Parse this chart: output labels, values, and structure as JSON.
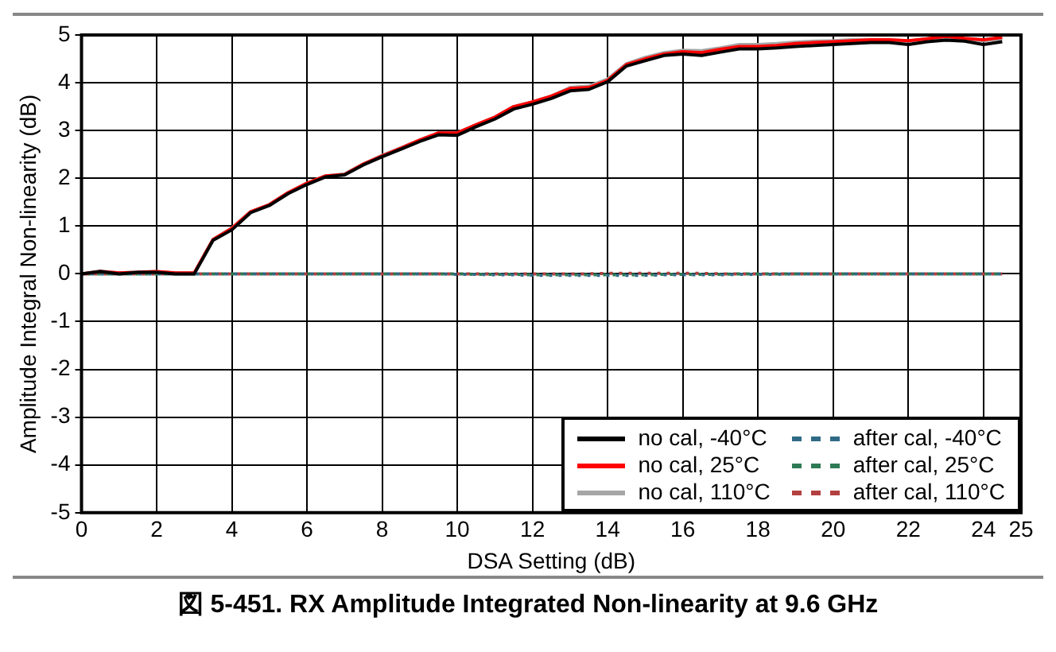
{
  "chart_data": {
    "type": "line",
    "title": "図 5-451. RX Amplitude Integrated Non-linearity at 9.6 GHz",
    "xlabel": "DSA Setting (dB)",
    "ylabel": "Amplitude Integral Non-linearity (dB)",
    "x": [
      0,
      0.5,
      1,
      1.5,
      2,
      2.5,
      3,
      3.5,
      4,
      4.5,
      5,
      5.5,
      6,
      6.5,
      7,
      7.5,
      8,
      8.5,
      9,
      9.5,
      10,
      10.5,
      11,
      11.5,
      12,
      12.5,
      13,
      13.5,
      14,
      14.5,
      15,
      15.5,
      16,
      16.5,
      17,
      17.5,
      18,
      18.5,
      19,
      19.5,
      20,
      20.5,
      21,
      21.5,
      22,
      22.5,
      23,
      23.5,
      24,
      24.5
    ],
    "series": [
      {
        "name": "no cal, -40°C",
        "color": "#000000",
        "line_style": "solid",
        "values": [
          0,
          0.05,
          0,
          0.03,
          0.03,
          0,
          0,
          0.7,
          0.92,
          1.28,
          1.43,
          1.68,
          1.87,
          2.03,
          2.07,
          2.28,
          2.45,
          2.61,
          2.77,
          2.91,
          2.9,
          3.08,
          3.24,
          3.45,
          3.55,
          3.67,
          3.83,
          3.86,
          4.02,
          4.35,
          4.46,
          4.57,
          4.6,
          4.57,
          4.64,
          4.71,
          4.71,
          4.73,
          4.76,
          4.78,
          4.8,
          4.82,
          4.84,
          4.84,
          4.8,
          4.86,
          4.89,
          4.87,
          4.8,
          4.86
        ]
      },
      {
        "name": "no cal, 25°C",
        "color": "#ff0000",
        "line_style": "solid",
        "values": [
          0,
          0.05,
          0.02,
          0.03,
          0.05,
          0.02,
          0.02,
          0.72,
          0.95,
          1.3,
          1.45,
          1.7,
          1.9,
          2.05,
          2.08,
          2.3,
          2.47,
          2.63,
          2.8,
          2.95,
          2.95,
          3.12,
          3.28,
          3.5,
          3.6,
          3.72,
          3.88,
          3.9,
          4.05,
          4.38,
          4.5,
          4.6,
          4.65,
          4.63,
          4.7,
          4.76,
          4.76,
          4.78,
          4.82,
          4.84,
          4.86,
          4.88,
          4.9,
          4.9,
          4.88,
          4.92,
          4.97,
          4.93,
          4.9,
          4.95
        ]
      },
      {
        "name": "no cal, 110°C",
        "color": "#a6a6a6",
        "line_style": "solid",
        "values": [
          0,
          0.06,
          0.02,
          0.04,
          0.05,
          0.02,
          0.02,
          0.72,
          0.96,
          1.3,
          1.45,
          1.7,
          1.9,
          2.05,
          2.09,
          2.3,
          2.48,
          2.64,
          2.8,
          2.95,
          2.95,
          3.12,
          3.28,
          3.5,
          3.6,
          3.72,
          3.9,
          3.93,
          4.08,
          4.4,
          4.53,
          4.63,
          4.68,
          4.67,
          4.73,
          4.8,
          4.8,
          4.82,
          4.85,
          4.87,
          4.88,
          4.9,
          4.9,
          4.9,
          4.87,
          4.92,
          4.94,
          4.92,
          4.88,
          4.92
        ]
      },
      {
        "name": "after cal, -40°C",
        "color": "#2f6a86",
        "line_style": "dashed",
        "values": [
          0,
          0,
          0,
          0,
          0,
          0,
          0,
          0,
          0,
          0,
          0,
          0,
          0,
          0,
          0,
          0,
          0,
          0,
          0,
          0,
          -0.01,
          -0.01,
          -0.02,
          -0.02,
          -0.03,
          -0.03,
          -0.03,
          -0.03,
          -0.03,
          -0.03,
          -0.03,
          -0.02,
          -0.02,
          -0.02,
          -0.02,
          -0.01,
          -0.01,
          -0.01,
          0,
          0,
          0,
          0,
          0,
          0,
          0,
          0,
          0,
          0,
          0,
          0
        ]
      },
      {
        "name": "after cal, 25°C",
        "color": "#2e7a55",
        "line_style": "dashed",
        "values": [
          0,
          0,
          0,
          0,
          0,
          0,
          0,
          0,
          0,
          0,
          0,
          0,
          0,
          0,
          0,
          0,
          0,
          0,
          0,
          0,
          0,
          -0.01,
          -0.01,
          -0.01,
          -0.02,
          -0.02,
          -0.02,
          -0.02,
          -0.02,
          -0.02,
          -0.02,
          -0.01,
          -0.01,
          -0.01,
          -0.01,
          0,
          0,
          0,
          0,
          0,
          0,
          0,
          0,
          0,
          0,
          0,
          0,
          0,
          0,
          0
        ]
      },
      {
        "name": "after cal, 110°C",
        "color": "#b34040",
        "line_style": "dashed",
        "values": [
          0,
          0,
          0,
          0,
          0,
          0,
          0,
          0,
          0,
          0,
          0,
          0,
          0,
          0,
          0,
          0,
          0,
          0,
          0,
          0,
          0,
          0,
          0,
          0,
          0,
          0,
          0,
          0,
          0.01,
          0.01,
          0.01,
          0.01,
          0.01,
          0.01,
          0,
          0,
          0,
          0,
          0,
          0,
          0,
          0,
          0,
          0,
          0,
          0,
          0,
          0,
          0,
          0
        ]
      }
    ],
    "xlim": [
      0,
      25
    ],
    "xticks": [
      0,
      2,
      4,
      6,
      8,
      10,
      12,
      14,
      16,
      18,
      20,
      22,
      24,
      25
    ],
    "ylim": [
      -5,
      5
    ],
    "yticks": [
      -5,
      -4,
      -3,
      -2,
      -1,
      0,
      1,
      2,
      3,
      4,
      5
    ],
    "grid": true,
    "legend": "bottom right",
    "marker": "none"
  }
}
